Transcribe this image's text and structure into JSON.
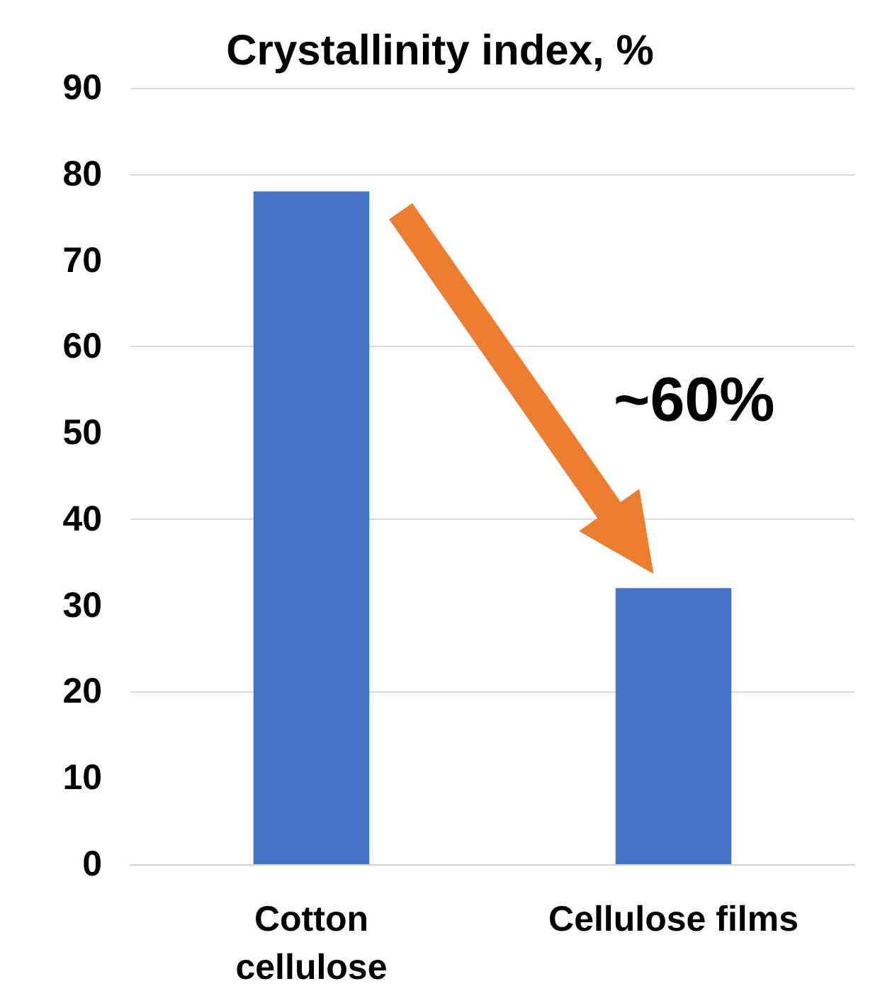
{
  "chart_data": {
    "type": "bar",
    "title": "Crystallinity index, %",
    "categories": [
      "Cotton\ncellulose",
      "Cellulose films"
    ],
    "values": [
      78,
      32
    ],
    "color": "#4472c4",
    "ylim": [
      0,
      90
    ],
    "yticks": [
      0,
      10,
      20,
      30,
      40,
      50,
      60,
      70,
      80,
      90
    ],
    "grid": "y",
    "annotations": [
      "~60%"
    ]
  }
}
